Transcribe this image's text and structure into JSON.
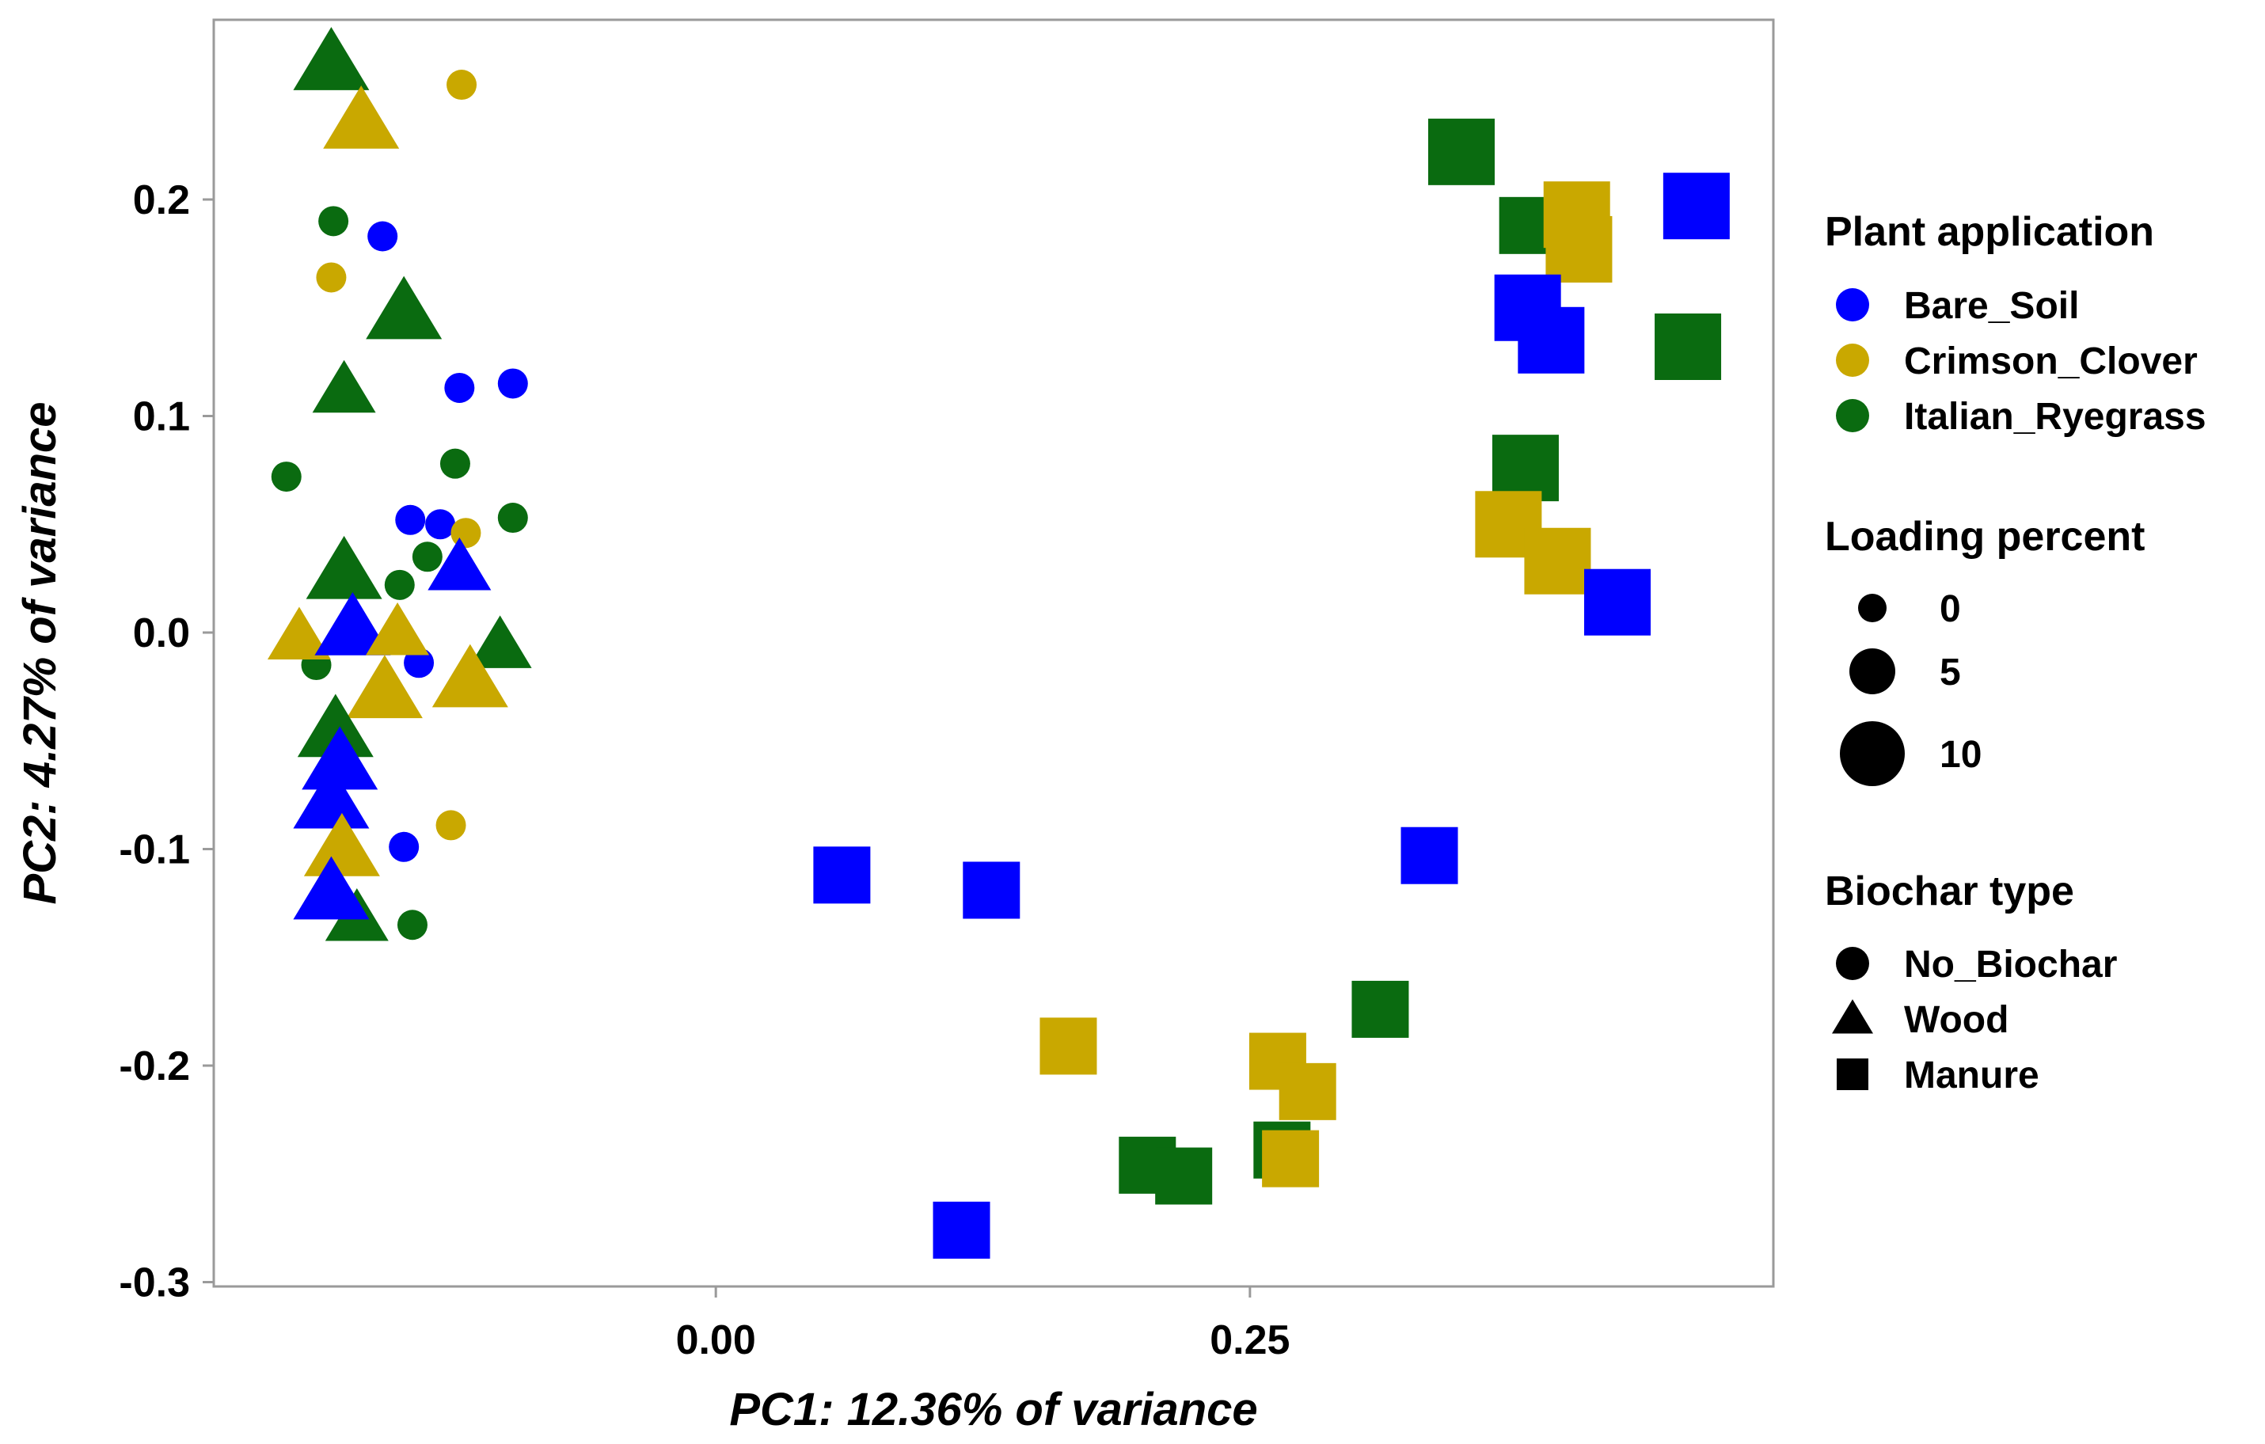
{
  "chart_data": {
    "type": "scatter",
    "title": "",
    "xlabel": "PC1: 12.36% of variance",
    "ylabel": "PC2: 4.27% of variance",
    "xlim": [
      -0.235,
      0.495
    ],
    "ylim": [
      -0.302,
      0.283
    ],
    "xticks": [
      0.0,
      0.25
    ],
    "xtick_labels": [
      "0.00",
      "0.25"
    ],
    "yticks": [
      -0.3,
      -0.2,
      -0.1,
      0.0,
      0.1,
      0.2
    ],
    "ytick_labels": [
      "-0.3",
      "-0.2",
      "-0.1",
      "0.0",
      "0.1",
      "0.2"
    ],
    "grid": false,
    "colors": {
      "Bare_Soil": "#0000ff",
      "Crimson_Clover": "#c9a800",
      "Italian_Ryegrass": "#0a6b10"
    },
    "legend": {
      "position": "right",
      "color_title": "Plant application",
      "color_entries": [
        "Bare_Soil",
        "Crimson_Clover",
        "Italian_Ryegrass"
      ],
      "size_title": "Loading percent",
      "size_entries": [
        "0",
        "5",
        "10"
      ],
      "shape_title": "Biochar type",
      "shape_entries": [
        "No_Biochar",
        "Wood",
        "Manure"
      ]
    },
    "points": [
      {
        "x": -0.119,
        "y": 0.253,
        "plant": "Crimson_Clover",
        "biochar": "No_Biochar",
        "load": 0
      },
      {
        "x": -0.179,
        "y": 0.19,
        "plant": "Italian_Ryegrass",
        "biochar": "No_Biochar",
        "load": 0
      },
      {
        "x": -0.156,
        "y": 0.183,
        "plant": "Bare_Soil",
        "biochar": "No_Biochar",
        "load": 0
      },
      {
        "x": -0.18,
        "y": 0.164,
        "plant": "Crimson_Clover",
        "biochar": "No_Biochar",
        "load": 0
      },
      {
        "x": -0.12,
        "y": 0.113,
        "plant": "Bare_Soil",
        "biochar": "No_Biochar",
        "load": 0
      },
      {
        "x": -0.095,
        "y": 0.115,
        "plant": "Bare_Soil",
        "biochar": "No_Biochar",
        "load": 0
      },
      {
        "x": -0.201,
        "y": 0.072,
        "plant": "Italian_Ryegrass",
        "biochar": "No_Biochar",
        "load": 0
      },
      {
        "x": -0.122,
        "y": 0.078,
        "plant": "Italian_Ryegrass",
        "biochar": "No_Biochar",
        "load": 0
      },
      {
        "x": -0.095,
        "y": 0.053,
        "plant": "Italian_Ryegrass",
        "biochar": "No_Biochar",
        "load": 0
      },
      {
        "x": -0.143,
        "y": 0.052,
        "plant": "Bare_Soil",
        "biochar": "No_Biochar",
        "load": 0
      },
      {
        "x": -0.129,
        "y": 0.05,
        "plant": "Bare_Soil",
        "biochar": "No_Biochar",
        "load": 0
      },
      {
        "x": -0.117,
        "y": 0.046,
        "plant": "Crimson_Clover",
        "biochar": "No_Biochar",
        "load": 0
      },
      {
        "x": -0.135,
        "y": 0.035,
        "plant": "Italian_Ryegrass",
        "biochar": "No_Biochar",
        "load": 0
      },
      {
        "x": -0.148,
        "y": 0.022,
        "plant": "Italian_Ryegrass",
        "biochar": "No_Biochar",
        "load": 0
      },
      {
        "x": -0.187,
        "y": -0.015,
        "plant": "Italian_Ryegrass",
        "biochar": "No_Biochar",
        "load": 0
      },
      {
        "x": -0.139,
        "y": -0.014,
        "plant": "Bare_Soil",
        "biochar": "No_Biochar",
        "load": 0
      },
      {
        "x": -0.124,
        "y": -0.089,
        "plant": "Crimson_Clover",
        "biochar": "No_Biochar",
        "load": 0
      },
      {
        "x": -0.146,
        "y": -0.099,
        "plant": "Bare_Soil",
        "biochar": "No_Biochar",
        "load": 0
      },
      {
        "x": -0.142,
        "y": -0.135,
        "plant": "Italian_Ryegrass",
        "biochar": "No_Biochar",
        "load": 0
      },
      {
        "x": -0.18,
        "y": 0.263,
        "plant": "Italian_Ryegrass",
        "biochar": "Wood",
        "load": 5
      },
      {
        "x": -0.166,
        "y": 0.236,
        "plant": "Crimson_Clover",
        "biochar": "Wood",
        "load": 5
      },
      {
        "x": -0.146,
        "y": 0.148,
        "plant": "Italian_Ryegrass",
        "biochar": "Wood",
        "load": 5
      },
      {
        "x": -0.174,
        "y": 0.112,
        "plant": "Italian_Ryegrass",
        "biochar": "Wood",
        "load": 0
      },
      {
        "x": -0.174,
        "y": 0.028,
        "plant": "Italian_Ryegrass",
        "biochar": "Wood",
        "load": 5
      },
      {
        "x": -0.12,
        "y": 0.03,
        "plant": "Bare_Soil",
        "biochar": "Wood",
        "load": 0
      },
      {
        "x": -0.195,
        "y": -0.002,
        "plant": "Crimson_Clover",
        "biochar": "Wood",
        "load": 0
      },
      {
        "x": -0.17,
        "y": 0.002,
        "plant": "Bare_Soil",
        "biochar": "Wood",
        "load": 5
      },
      {
        "x": -0.149,
        "y": 0.0,
        "plant": "Crimson_Clover",
        "biochar": "Wood",
        "load": 0
      },
      {
        "x": -0.101,
        "y": -0.006,
        "plant": "Italian_Ryegrass",
        "biochar": "Wood",
        "load": 0
      },
      {
        "x": -0.155,
        "y": -0.027,
        "plant": "Crimson_Clover",
        "biochar": "Wood",
        "load": 5
      },
      {
        "x": -0.115,
        "y": -0.022,
        "plant": "Crimson_Clover",
        "biochar": "Wood",
        "load": 5
      },
      {
        "x": -0.178,
        "y": -0.045,
        "plant": "Italian_Ryegrass",
        "biochar": "Wood",
        "load": 5
      },
      {
        "x": -0.176,
        "y": -0.06,
        "plant": "Bare_Soil",
        "biochar": "Wood",
        "load": 5
      },
      {
        "x": -0.18,
        "y": -0.078,
        "plant": "Bare_Soil",
        "biochar": "Wood",
        "load": 5
      },
      {
        "x": -0.175,
        "y": -0.1,
        "plant": "Crimson_Clover",
        "biochar": "Wood",
        "load": 5
      },
      {
        "x": -0.168,
        "y": -0.132,
        "plant": "Italian_Ryegrass",
        "biochar": "Wood",
        "load": 0
      },
      {
        "x": -0.18,
        "y": -0.12,
        "plant": "Bare_Soil",
        "biochar": "Wood",
        "load": 5
      },
      {
        "x": 0.349,
        "y": 0.222,
        "plant": "Italian_Ryegrass",
        "biochar": "Manure",
        "load": 5
      },
      {
        "x": 0.459,
        "y": 0.197,
        "plant": "Bare_Soil",
        "biochar": "Manure",
        "load": 5
      },
      {
        "x": 0.38,
        "y": 0.188,
        "plant": "Italian_Ryegrass",
        "biochar": "Manure",
        "load": 0
      },
      {
        "x": 0.403,
        "y": 0.193,
        "plant": "Crimson_Clover",
        "biochar": "Manure",
        "load": 5
      },
      {
        "x": 0.404,
        "y": 0.177,
        "plant": "Crimson_Clover",
        "biochar": "Manure",
        "load": 5
      },
      {
        "x": 0.38,
        "y": 0.15,
        "plant": "Bare_Soil",
        "biochar": "Manure",
        "load": 5
      },
      {
        "x": 0.391,
        "y": 0.135,
        "plant": "Bare_Soil",
        "biochar": "Manure",
        "load": 5
      },
      {
        "x": 0.455,
        "y": 0.132,
        "plant": "Italian_Ryegrass",
        "biochar": "Manure",
        "load": 5
      },
      {
        "x": 0.379,
        "y": 0.076,
        "plant": "Italian_Ryegrass",
        "biochar": "Manure",
        "load": 5
      },
      {
        "x": 0.371,
        "y": 0.05,
        "plant": "Crimson_Clover",
        "biochar": "Manure",
        "load": 5
      },
      {
        "x": 0.394,
        "y": 0.033,
        "plant": "Crimson_Clover",
        "biochar": "Manure",
        "load": 5
      },
      {
        "x": 0.422,
        "y": 0.014,
        "plant": "Bare_Soil",
        "biochar": "Manure",
        "load": 5
      },
      {
        "x": 0.334,
        "y": -0.103,
        "plant": "Bare_Soil",
        "biochar": "Manure",
        "load": 0
      },
      {
        "x": 0.059,
        "y": -0.112,
        "plant": "Bare_Soil",
        "biochar": "Manure",
        "load": 0
      },
      {
        "x": 0.129,
        "y": -0.119,
        "plant": "Bare_Soil",
        "biochar": "Manure",
        "load": 0
      },
      {
        "x": 0.311,
        "y": -0.174,
        "plant": "Italian_Ryegrass",
        "biochar": "Manure",
        "load": 0
      },
      {
        "x": 0.165,
        "y": -0.191,
        "plant": "Crimson_Clover",
        "biochar": "Manure",
        "load": 0
      },
      {
        "x": 0.263,
        "y": -0.198,
        "plant": "Crimson_Clover",
        "biochar": "Manure",
        "load": 0
      },
      {
        "x": 0.277,
        "y": -0.212,
        "plant": "Crimson_Clover",
        "biochar": "Manure",
        "load": 0
      },
      {
        "x": 0.265,
        "y": -0.239,
        "plant": "Italian_Ryegrass",
        "biochar": "Manure",
        "load": 0
      },
      {
        "x": 0.269,
        "y": -0.243,
        "plant": "Crimson_Clover",
        "biochar": "Manure",
        "load": 0
      },
      {
        "x": 0.202,
        "y": -0.246,
        "plant": "Italian_Ryegrass",
        "biochar": "Manure",
        "load": 0
      },
      {
        "x": 0.219,
        "y": -0.251,
        "plant": "Italian_Ryegrass",
        "biochar": "Manure",
        "load": 0
      },
      {
        "x": 0.115,
        "y": -0.276,
        "plant": "Bare_Soil",
        "biochar": "Manure",
        "load": 0
      }
    ]
  }
}
